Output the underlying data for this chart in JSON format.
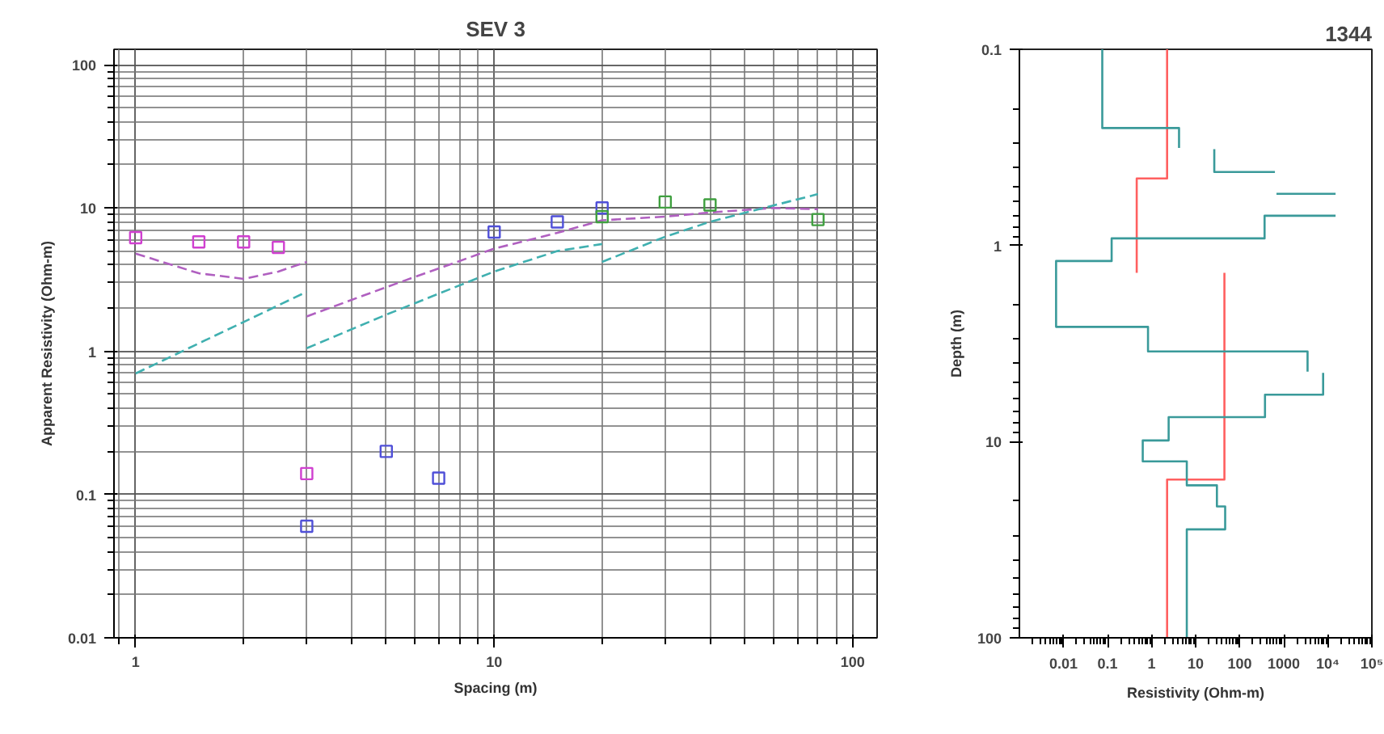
{
  "chart_data": [
    {
      "type": "line",
      "title": "SEV 3",
      "xlabel": "Spacing (m)",
      "ylabel": "Apparent Resistivity (Ohm-m)",
      "log": "xy",
      "grid": true,
      "xlim": [
        0.87,
        117
      ],
      "ylim": [
        0.01,
        128
      ],
      "xticks": [
        1,
        10,
        100
      ],
      "yticks": [
        0.01,
        0.1,
        1,
        10,
        100
      ],
      "series": [
        {
          "type": "line",
          "line_style": "dashed",
          "marker": "none",
          "color": "#b060c0",
          "x": [
            1,
            1.5,
            2,
            2.5,
            3,
            null,
            3,
            5,
            10,
            15,
            20,
            30,
            40,
            60,
            80
          ],
          "values": [
            4.8,
            3.5,
            3.2,
            3.6,
            4.2,
            null,
            1.75,
            2.8,
            5.2,
            6.7,
            8.2,
            8.7,
            9.3,
            10,
            9.8
          ]
        },
        {
          "type": "line",
          "line_style": "dashed",
          "marker": "none",
          "color": "#40b0b0",
          "x": [
            1,
            2,
            3,
            null,
            3,
            5,
            10,
            15,
            20,
            null,
            20,
            30,
            40,
            80
          ],
          "values": [
            0.7,
            1.6,
            2.6,
            null,
            1.05,
            1.8,
            3.6,
            5.0,
            5.6,
            null,
            4.2,
            6.3,
            8.0,
            12.5
          ]
        },
        {
          "type": "scatter",
          "marker": "square",
          "color": "#d040d0",
          "x": [
            1,
            1.5,
            2,
            2.5,
            3
          ],
          "values": [
            6.2,
            5.8,
            5.8,
            5.3,
            0.14
          ]
        },
        {
          "type": "scatter",
          "marker": "square",
          "color": "#5050d8",
          "x": [
            3,
            5,
            7,
            10,
            15,
            20
          ],
          "values": [
            0.06,
            0.2,
            0.13,
            6.8,
            8.0,
            10
          ]
        },
        {
          "type": "scatter",
          "marker": "square",
          "color": "#40a040",
          "x": [
            20,
            30,
            40,
            80
          ],
          "values": [
            8.7,
            11,
            10.5,
            8.3
          ]
        }
      ]
    },
    {
      "type": "line",
      "title": "1344",
      "xlabel": "Resistivity (Ohm-m)",
      "ylabel": "Depth (m)",
      "log": "xy",
      "grid": false,
      "xlim": [
        0.001,
        100000
      ],
      "ylim": [
        100,
        0.1
      ],
      "xticks": [
        0.01,
        0.1,
        1,
        10,
        100,
        1000,
        {
          "value": 10000,
          "label": "10⁴"
        },
        {
          "value": 100000,
          "label": "10⁵"
        }
      ],
      "yticks": [
        0.1,
        1,
        10,
        100
      ],
      "series": [
        {
          "type": "line",
          "line_style": "solid",
          "marker": "none",
          "color": "#ff6060",
          "x": [
            2.25,
            2.25,
            0.46,
            0.46,
            null,
            45,
            45,
            2.25,
            2.25
          ],
          "values": [
            0.1,
            0.455,
            0.455,
            1.38,
            null,
            1.38,
            15.6,
            15.6,
            100
          ]
        },
        {
          "type": "line",
          "line_style": "solid",
          "marker": "none",
          "color": "#3a9a9a",
          "x": [
            0.076,
            0.076,
            4.2,
            4.2,
            null,
            26.5,
            26.5,
            630,
            null,
            684,
            15000,
            null,
            15000,
            367,
            367,
            0.124,
            0.124,
            0.0068,
            0.0068,
            0.83,
            0.83,
            3470,
            3470,
            null,
            7830,
            7830,
            375,
            375,
            2.44,
            2.44,
            0.63,
            0.63,
            6.3,
            6.3,
            30.4,
            30.4,
            46.8,
            46.8,
            6.3,
            6.3
          ],
          "values": [
            0.1,
            0.252,
            0.252,
            0.318,
            null,
            0.323,
            0.422,
            0.422,
            null,
            0.545,
            0.545,
            null,
            0.705,
            0.705,
            0.92,
            0.92,
            1.2,
            1.2,
            2.6,
            2.6,
            3.47,
            3.47,
            4.4,
            null,
            4.46,
            5.76,
            5.76,
            7.5,
            7.5,
            9.86,
            9.86,
            12.6,
            12.6,
            16.7,
            16.7,
            21.4,
            21.4,
            28,
            28,
            100
          ]
        }
      ]
    }
  ]
}
